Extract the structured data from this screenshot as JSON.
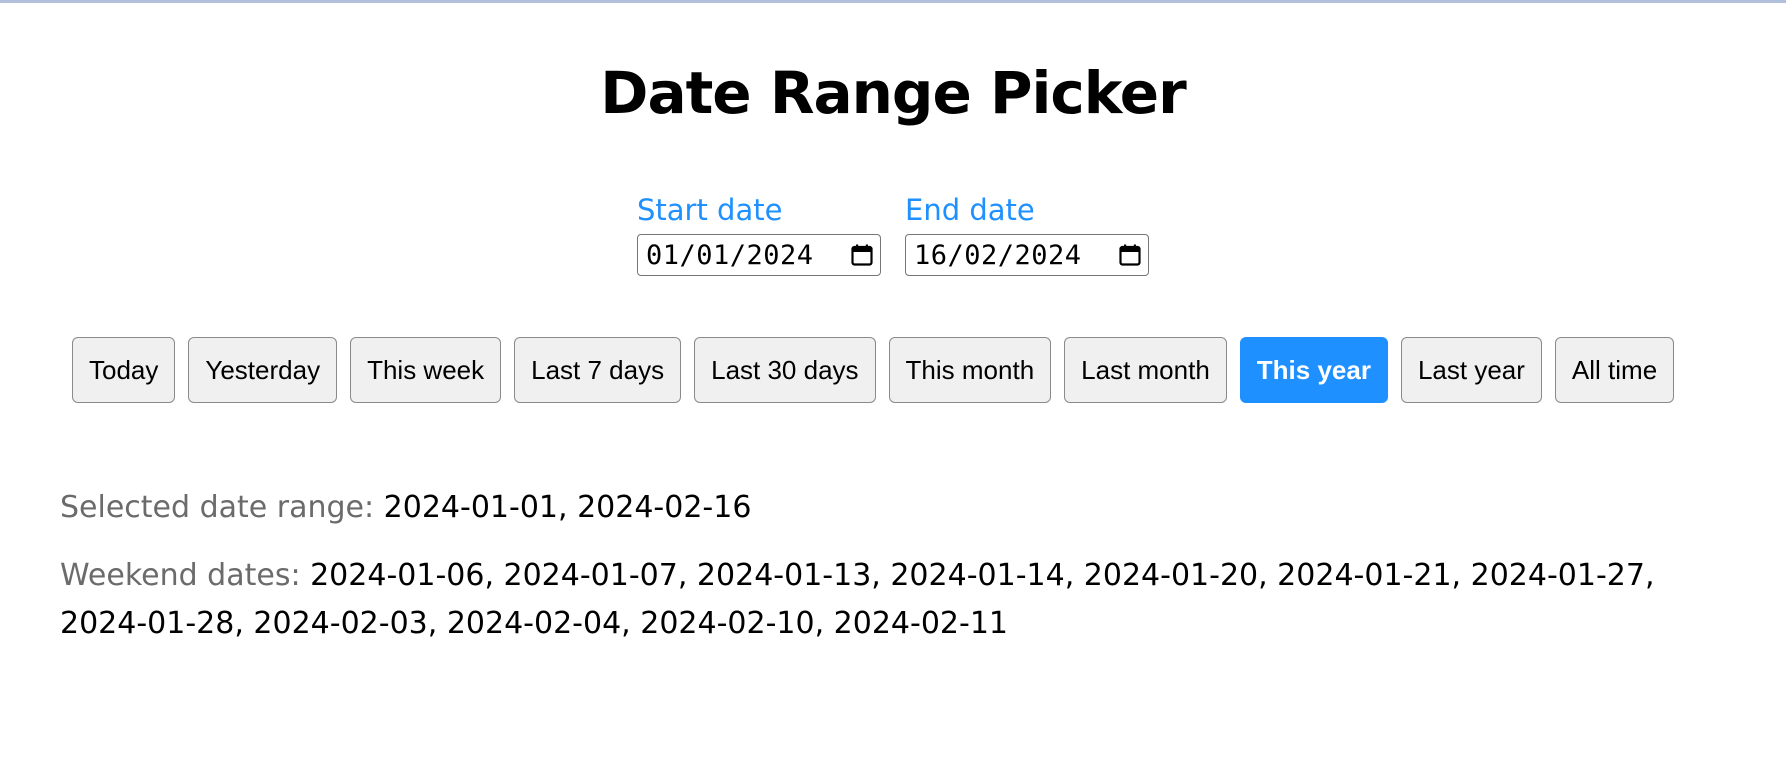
{
  "page": {
    "title": "Date Range Picker"
  },
  "start": {
    "label": "Start date",
    "value": "01/01/2024"
  },
  "end": {
    "label": "End date",
    "value": "16/02/2024"
  },
  "presets": [
    {
      "label": "Today",
      "active": false
    },
    {
      "label": "Yesterday",
      "active": false
    },
    {
      "label": "This week",
      "active": false
    },
    {
      "label": "Last 7 days",
      "active": false
    },
    {
      "label": "Last 30 days",
      "active": false
    },
    {
      "label": "This month",
      "active": false
    },
    {
      "label": "Last month",
      "active": false
    },
    {
      "label": "This year",
      "active": true
    },
    {
      "label": "Last year",
      "active": false
    },
    {
      "label": "All time",
      "active": false
    }
  ],
  "summary": {
    "range_label": "Selected date range: ",
    "range_value": "2024-01-01, 2024-02-16",
    "weekend_label": "Weekend dates: ",
    "weekend_value": "2024-01-06, 2024-01-07, 2024-01-13, 2024-01-14, 2024-01-20, 2024-01-21, 2024-01-27, 2024-01-28, 2024-02-03, 2024-02-04, 2024-02-10, 2024-02-11"
  },
  "colors": {
    "accent": "#1e90ff",
    "muted": "#6b6b6b"
  },
  "icons": {
    "date_picker": "calendar-icon"
  }
}
